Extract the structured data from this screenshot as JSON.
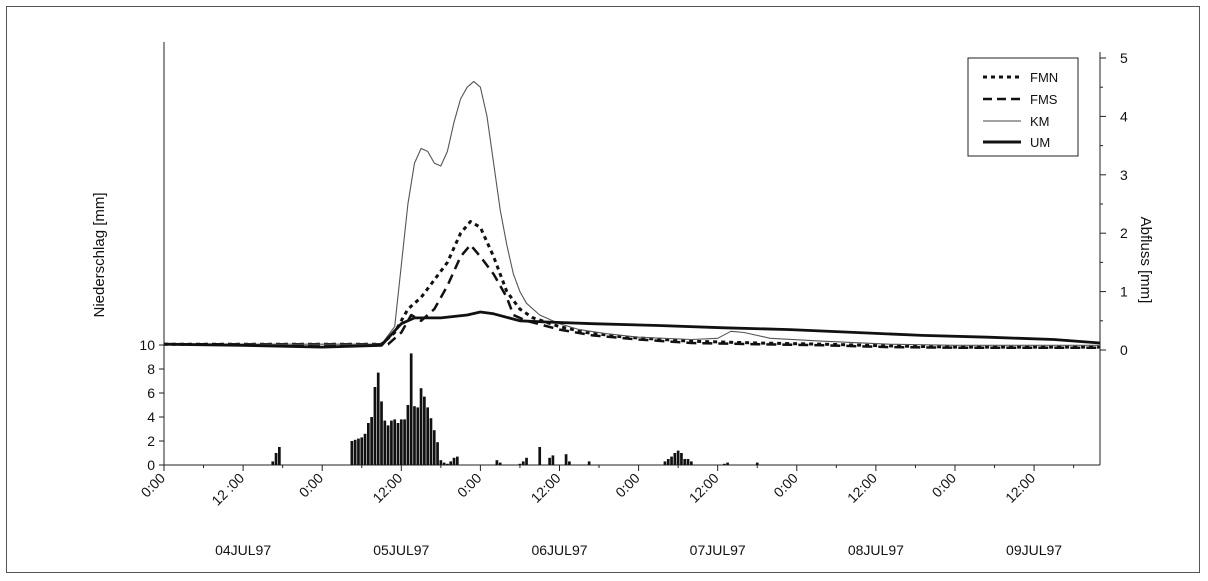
{
  "chart_data": {
    "type": "line",
    "left_axis_label": "Niederschlag [mm]",
    "right_axis_label": "Abfluss [mm]",
    "x_time_ticks": [
      "0:00",
      "12 :00",
      "0:00",
      "12:00",
      "0:00",
      "12:00",
      "0:00",
      "12:00",
      "0:00",
      "12:00",
      "0:00",
      "12:00"
    ],
    "x_day_labels": [
      "04JUL97",
      "05JUL97",
      "06JUL97",
      "07JUL97",
      "08JUL97",
      "09JUL97"
    ],
    "x_range_hours": [
      0,
      142
    ],
    "precip": {
      "axis_ticks": [
        "0",
        "2",
        "4",
        "6",
        "8",
        "10"
      ],
      "ylim": [
        0,
        10
      ],
      "bars_hours": [
        16.5,
        17.0,
        17.5,
        28.5,
        29.0,
        29.5,
        30.0,
        30.5,
        31.0,
        31.5,
        32.0,
        32.5,
        33.0,
        33.5,
        34.0,
        34.5,
        35.0,
        35.5,
        36.0,
        36.5,
        37.0,
        37.5,
        38.0,
        38.5,
        39.0,
        39.5,
        40.0,
        40.5,
        41.0,
        41.5,
        42.0,
        42.5,
        43.0,
        43.5,
        44.0,
        44.5,
        50.5,
        51.0,
        54.0,
        54.5,
        55.0,
        57.0,
        58.5,
        59.0,
        61.0,
        61.5,
        64.5,
        76.0,
        76.5,
        77.0,
        77.5,
        78.0,
        78.5,
        79.0,
        79.5,
        80.0,
        85.0,
        85.5,
        90.0
      ],
      "bars_values": [
        0.3,
        1.0,
        1.5,
        2.0,
        2.1,
        2.2,
        2.3,
        2.6,
        3.5,
        4.0,
        6.5,
        7.7,
        5.3,
        3.7,
        3.3,
        3.7,
        3.8,
        3.5,
        3.8,
        3.8,
        5.0,
        9.3,
        4.9,
        4.8,
        6.4,
        5.7,
        4.8,
        3.9,
        2.9,
        1.9,
        0.4,
        0.2,
        0.1,
        0.3,
        0.6,
        0.7,
        0.4,
        0.2,
        0.1,
        0.3,
        0.6,
        1.5,
        0.6,
        0.8,
        0.9,
        0.3,
        0.3,
        0.3,
        0.5,
        0.7,
        1.0,
        1.2,
        1.0,
        0.5,
        0.5,
        0.3,
        0.1,
        0.2,
        0.2
      ]
    },
    "runoff": {
      "axis_ticks": [
        "0",
        "1",
        "2",
        "3",
        "4",
        "5"
      ],
      "ylim": [
        0,
        5
      ],
      "series": [
        {
          "name": "FMN",
          "style": "dotted",
          "points": [
            [
              0,
              0.1
            ],
            [
              33,
              0.1
            ],
            [
              35,
              0.3
            ],
            [
              37,
              0.7
            ],
            [
              39,
              0.9
            ],
            [
              41,
              1.2
            ],
            [
              43,
              1.5
            ],
            [
              45,
              2.0
            ],
            [
              46.5,
              2.2
            ],
            [
              48,
              2.1
            ],
            [
              50,
              1.6
            ],
            [
              52,
              1.0
            ],
            [
              54,
              0.7
            ],
            [
              56,
              0.55
            ],
            [
              60,
              0.4
            ],
            [
              64,
              0.3
            ],
            [
              70,
              0.22
            ],
            [
              80,
              0.15
            ],
            [
              90,
              0.12
            ],
            [
              100,
              0.1
            ],
            [
              110,
              0.07
            ],
            [
              120,
              0.05
            ],
            [
              142,
              0.05
            ]
          ]
        },
        {
          "name": "FMS",
          "style": "dashed",
          "points": [
            [
              0,
              0.1
            ],
            [
              34,
              0.1
            ],
            [
              36,
              0.3
            ],
            [
              37.5,
              0.6
            ],
            [
              39,
              0.5
            ],
            [
              41,
              0.7
            ],
            [
              43,
              1.1
            ],
            [
              45,
              1.6
            ],
            [
              46.5,
              1.8
            ],
            [
              48,
              1.6
            ],
            [
              50,
              1.3
            ],
            [
              52,
              0.9
            ],
            [
              53,
              0.6
            ],
            [
              55,
              0.5
            ],
            [
              60,
              0.35
            ],
            [
              65,
              0.25
            ],
            [
              72,
              0.18
            ],
            [
              80,
              0.12
            ],
            [
              90,
              0.1
            ],
            [
              100,
              0.08
            ],
            [
              110,
              0.05
            ],
            [
              120,
              0.04
            ],
            [
              142,
              0.04
            ]
          ]
        },
        {
          "name": "KM",
          "style": "thin",
          "points": [
            [
              0,
              0.1
            ],
            [
              33,
              0.1
            ],
            [
              35,
              0.4
            ],
            [
              37,
              2.5
            ],
            [
              38,
              3.2
            ],
            [
              39,
              3.45
            ],
            [
              40,
              3.4
            ],
            [
              41,
              3.2
            ],
            [
              42,
              3.15
            ],
            [
              43,
              3.4
            ],
            [
              44,
              3.9
            ],
            [
              45,
              4.3
            ],
            [
              46,
              4.5
            ],
            [
              47,
              4.6
            ],
            [
              48,
              4.5
            ],
            [
              49,
              4.0
            ],
            [
              50,
              3.2
            ],
            [
              51,
              2.4
            ],
            [
              52,
              1.8
            ],
            [
              53,
              1.3
            ],
            [
              54,
              1.0
            ],
            [
              55,
              0.8
            ],
            [
              57,
              0.6
            ],
            [
              60,
              0.45
            ],
            [
              63,
              0.35
            ],
            [
              67,
              0.28
            ],
            [
              72,
              0.22
            ],
            [
              80,
              0.18
            ],
            [
              84,
              0.2
            ],
            [
              86,
              0.32
            ],
            [
              88,
              0.3
            ],
            [
              92,
              0.2
            ],
            [
              100,
              0.15
            ],
            [
              110,
              0.1
            ],
            [
              120,
              0.08
            ],
            [
              142,
              0.08
            ]
          ]
        },
        {
          "name": "UM",
          "style": "thick",
          "points": [
            [
              0,
              0.1
            ],
            [
              12,
              0.08
            ],
            [
              24,
              0.05
            ],
            [
              33,
              0.08
            ],
            [
              36,
              0.45
            ],
            [
              38,
              0.55
            ],
            [
              42,
              0.55
            ],
            [
              46,
              0.6
            ],
            [
              48,
              0.65
            ],
            [
              50,
              0.62
            ],
            [
              54,
              0.5
            ],
            [
              58,
              0.48
            ],
            [
              65,
              0.45
            ],
            [
              75,
              0.42
            ],
            [
              85,
              0.38
            ],
            [
              95,
              0.35
            ],
            [
              105,
              0.3
            ],
            [
              115,
              0.25
            ],
            [
              125,
              0.22
            ],
            [
              135,
              0.18
            ],
            [
              142,
              0.12
            ]
          ]
        }
      ]
    },
    "legend_position": "top-right",
    "grid": false
  }
}
